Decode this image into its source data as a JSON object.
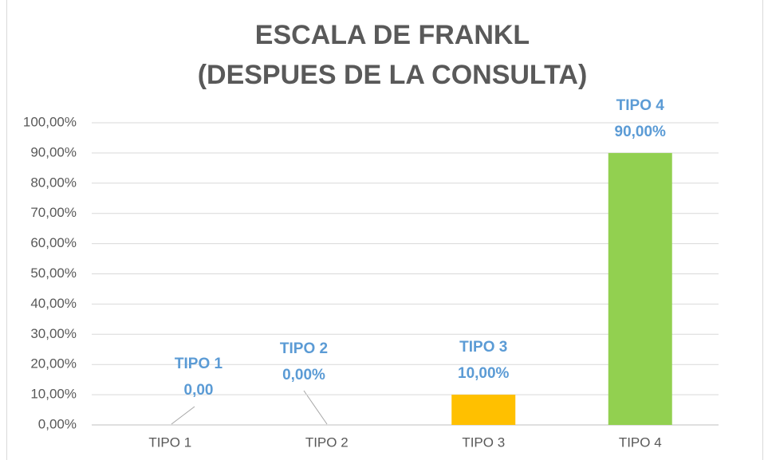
{
  "chart_data": {
    "type": "bar",
    "title": [
      "ESCALA DE FRANKL",
      "(DESPUES DE LA CONSULTA)"
    ],
    "categories": [
      "TIPO 1",
      "TIPO 2",
      "TIPO 3",
      "TIPO 4"
    ],
    "values": [
      0,
      0,
      10,
      90
    ],
    "value_labels": [
      "0,00",
      "0,00%",
      "10,00%",
      "90,00%"
    ],
    "colors": [
      "#5b9bd5",
      "#ed7d31",
      "#ffc000",
      "#92d050"
    ],
    "ylim": [
      0,
      100
    ],
    "yticks": [
      {
        "value": 0,
        "label": "0,00%"
      },
      {
        "value": 10,
        "label": "10,00%"
      },
      {
        "value": 20,
        "label": "20,00%"
      },
      {
        "value": 30,
        "label": "30,00%"
      },
      {
        "value": 40,
        "label": "40,00%"
      },
      {
        "value": 50,
        "label": "50,00%"
      },
      {
        "value": 60,
        "label": "60,00%"
      },
      {
        "value": 70,
        "label": "70,00%"
      },
      {
        "value": 80,
        "label": "80,00%"
      },
      {
        "value": 90,
        "label": "90,00%"
      },
      {
        "value": 100,
        "label": "100,00%"
      }
    ],
    "grid": true
  }
}
